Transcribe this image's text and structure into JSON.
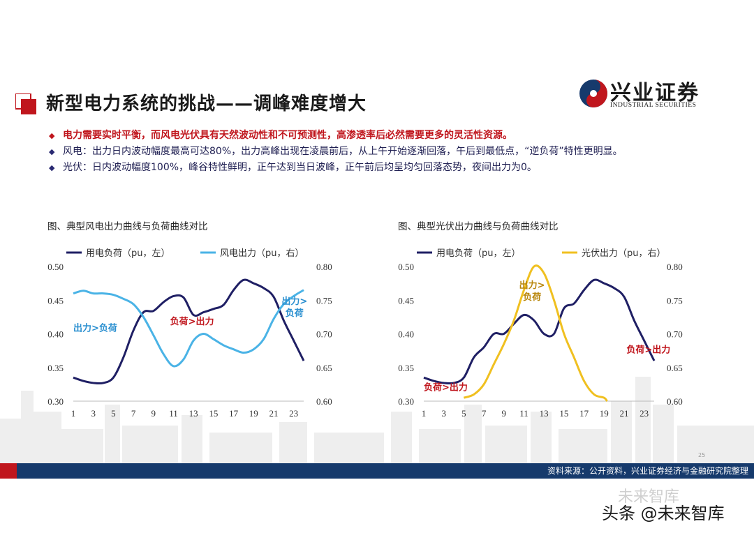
{
  "title": "新型电力系统的挑战——调峰难度增大",
  "logo": {
    "cn": "兴业证券",
    "en": "INDUSTRIAL SECURITIES"
  },
  "bullets": [
    "电力需要实时平衡，而风电光伏具有天然波动性和不可预测性，高渗透率后必然需要更多的灵活性资源。",
    "风电：出力日内波动幅度最高可达80%，出力高峰出现在凌晨前后，从上午开始逐渐回落，午后到最低点，“逆负荷”特性更明显。",
    "光伏：日内波动幅度100%，峰谷特性鲜明，正午达到当日波峰，正午前后均呈均匀回落态势，夜间出力为0。"
  ],
  "colors": {
    "load": "#1f1f64",
    "wind": "#4ab3e6",
    "solar": "#f0c020",
    "accent": "#c0161d",
    "footer": "#163a6c"
  },
  "chart_data": [
    {
      "type": "line",
      "title": "图、典型风电出力曲线与负荷曲线对比",
      "x_ticks": [
        "1",
        "3",
        "5",
        "7",
        "9",
        "11",
        "13",
        "15",
        "17",
        "19",
        "21",
        "23"
      ],
      "x_range": [
        1,
        24
      ],
      "left_ylim": [
        0.3,
        0.5
      ],
      "left_ticks": [
        "0.50",
        "0.45",
        "0.40",
        "0.35",
        "0.30"
      ],
      "right_ylim": [
        0.6,
        0.8
      ],
      "right_ticks": [
        "0.80",
        "0.75",
        "0.70",
        "0.65",
        "0.60"
      ],
      "series": [
        {
          "name": "用电负荷（pu，左）",
          "axis": "left",
          "x": [
            1,
            2,
            3,
            4,
            5,
            6,
            7,
            8,
            9,
            10,
            11,
            12,
            13,
            14,
            15,
            16,
            17,
            18,
            19,
            20,
            21,
            22,
            23,
            24
          ],
          "values": [
            0.335,
            0.33,
            0.327,
            0.327,
            0.335,
            0.365,
            0.405,
            0.432,
            0.434,
            0.447,
            0.456,
            0.454,
            0.428,
            0.432,
            0.437,
            0.443,
            0.465,
            0.48,
            0.475,
            0.468,
            0.455,
            0.42,
            0.39,
            0.36
          ]
        },
        {
          "name": "风电出力（pu，右）",
          "axis": "right",
          "x": [
            1,
            2,
            3,
            4,
            5,
            6,
            7,
            8,
            9,
            10,
            11,
            12,
            13,
            14,
            15,
            16,
            17,
            18,
            19,
            20,
            21,
            22,
            23,
            24
          ],
          "values": [
            0.76,
            0.764,
            0.76,
            0.76,
            0.758,
            0.752,
            0.744,
            0.725,
            0.698,
            0.67,
            0.652,
            0.662,
            0.69,
            0.7,
            0.692,
            0.683,
            0.677,
            0.672,
            0.677,
            0.692,
            0.722,
            0.744,
            0.756,
            0.765
          ]
        }
      ],
      "annotations": [
        {
          "text": "出力>负荷",
          "color": "#2a8fd0"
        },
        {
          "text": "负荷>出力",
          "color": "#c0161d"
        },
        {
          "text": "出力>负荷",
          "color": "#2a8fd0"
        }
      ]
    },
    {
      "type": "line",
      "title": "图、典型光伏出力曲线与负荷曲线对比",
      "x_ticks": [
        "1",
        "3",
        "5",
        "7",
        "9",
        "11",
        "13",
        "15",
        "17",
        "19",
        "21",
        "23"
      ],
      "x_range": [
        1,
        24
      ],
      "left_ylim": [
        0.3,
        0.5
      ],
      "left_ticks": [
        "0.50",
        "0.45",
        "0.40",
        "0.35",
        "0.30"
      ],
      "right_ylim": [
        0.6,
        0.8
      ],
      "right_ticks": [
        "0.80",
        "0.75",
        "0.70",
        "0.65",
        "0.60"
      ],
      "series": [
        {
          "name": "用电负荷（pu，左）",
          "axis": "left",
          "x": [
            1,
            2,
            3,
            4,
            5,
            6,
            7,
            8,
            9,
            10,
            11,
            12,
            13,
            14,
            15,
            16,
            17,
            18,
            19,
            20,
            21,
            22,
            23,
            24
          ],
          "values": [
            0.335,
            0.33,
            0.327,
            0.327,
            0.335,
            0.365,
            0.38,
            0.4,
            0.4,
            0.415,
            0.428,
            0.42,
            0.4,
            0.4,
            0.438,
            0.445,
            0.465,
            0.48,
            0.475,
            0.468,
            0.455,
            0.42,
            0.39,
            0.36
          ]
        },
        {
          "name": "光伏出力（pu，右）",
          "axis": "right",
          "x": [
            5,
            6,
            7,
            8,
            9,
            10,
            11,
            12,
            13,
            14,
            15,
            16,
            17,
            18,
            19,
            19.3
          ],
          "values": [
            0.605,
            0.61,
            0.625,
            0.655,
            0.685,
            0.72,
            0.765,
            0.8,
            0.79,
            0.75,
            0.7,
            0.665,
            0.63,
            0.61,
            0.605,
            0.6
          ]
        }
      ],
      "annotations": [
        {
          "text": "出力>负荷",
          "color": "#b8860b"
        },
        {
          "text": "负荷>出力",
          "color": "#c0161d"
        },
        {
          "text": "负荷>出力",
          "color": "#c0161d"
        }
      ]
    }
  ],
  "footer": {
    "source": "资料来源：公开资料，兴业证券经济与金融研究院整理",
    "page": "25"
  },
  "watermark": {
    "top": "未来智库",
    "bottom": "头条 @未来智库"
  }
}
